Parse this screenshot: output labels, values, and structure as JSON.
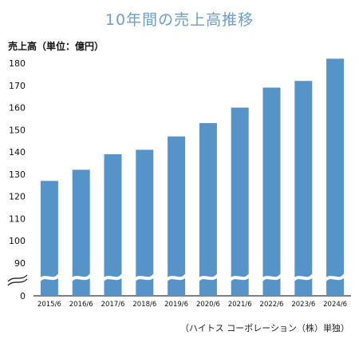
{
  "chart_data": {
    "type": "bar",
    "title": "10年間の売上高推移",
    "ylabel": "売上高（単位：億円）",
    "xlabel": "",
    "categories": [
      "2015/6",
      "2016/6",
      "2017/6",
      "2018/6",
      "2019/6",
      "2020/6",
      "2021/6",
      "2022/6",
      "2023/6",
      "2024/6"
    ],
    "values": [
      127,
      132,
      139,
      141,
      147,
      153,
      160,
      169,
      172,
      182
    ],
    "ylim": [
      0,
      180
    ],
    "y_ticks": [
      "0",
      "90",
      "100",
      "110",
      "120",
      "130",
      "140",
      "150",
      "160",
      "170",
      "180"
    ],
    "axis_break": "0–85",
    "grid": false,
    "legend": "none",
    "colors": {
      "bar": "#5593c9",
      "title": "#6e9ec2",
      "break_mark": "#ffffff"
    }
  },
  "source_note": "（ハイトス コーポレーション（株）単独）"
}
